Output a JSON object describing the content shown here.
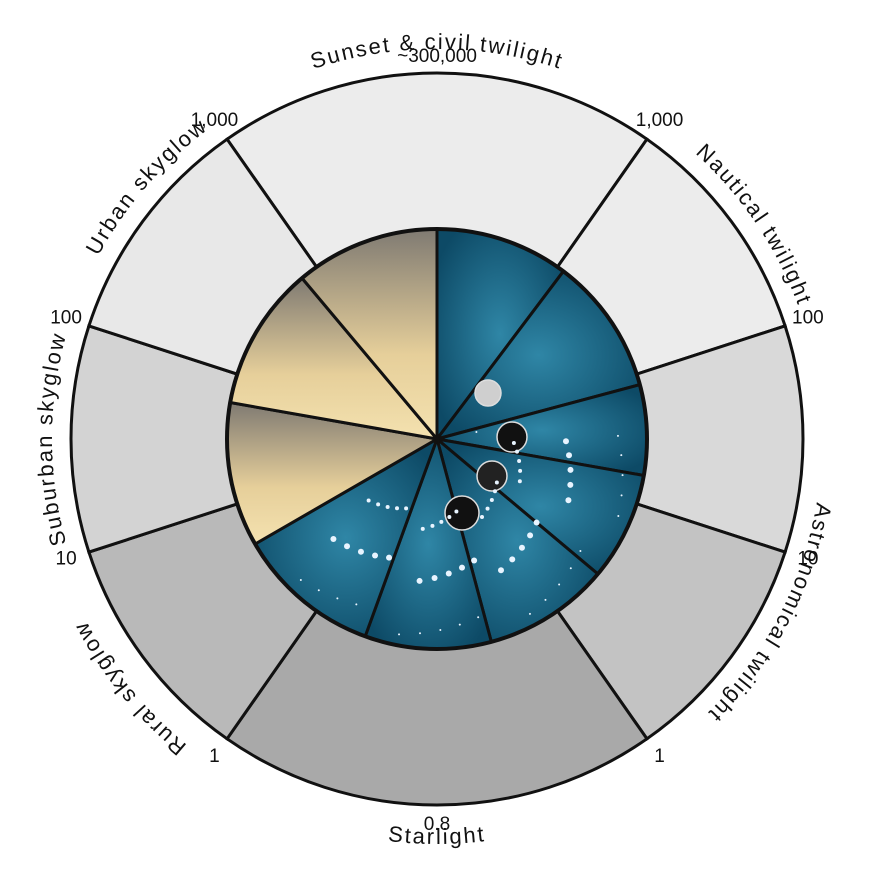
{
  "zones": [
    {
      "name": "Sunset & civil twilight"
    },
    {
      "name": "Nautical twilight"
    },
    {
      "name": "Astronomical twilight"
    },
    {
      "name": "Starlight"
    },
    {
      "name": "Rural skyglow"
    },
    {
      "name": "Suburban skyglow"
    },
    {
      "name": "Urban skyglow"
    }
  ],
  "boundary_labels": [
    "~300,000",
    "1,000",
    "100",
    "10",
    "1",
    "0.8",
    "1",
    "10",
    "100",
    "1,000"
  ]
}
